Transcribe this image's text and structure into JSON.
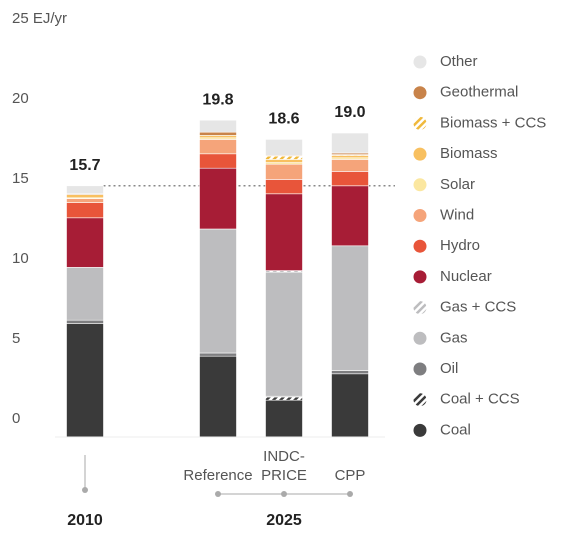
{
  "chart_data": {
    "type": "stacked_bar",
    "categories": [
      null,
      "Reference",
      "INDC-PRICE",
      "CPP"
    ],
    "group_labels": [
      "2010",
      "2025"
    ],
    "totals": [
      15.7,
      19.8,
      18.6,
      19.0
    ],
    "total_labels": [
      "15.7",
      "19.8",
      "18.6",
      "19.0"
    ],
    "ylim": [
      0,
      25
    ],
    "yticks": [
      0,
      5,
      10,
      15,
      20,
      {
        "value": 25,
        "label": "25 EJ/yr"
      }
    ],
    "grid": false,
    "legend": "right",
    "series": [
      {
        "name": "Coal",
        "color": "#3a3a3a",
        "values": [
          7.1,
          5.05,
          2.3,
          3.95
        ]
      },
      {
        "name": "Coal + CCS",
        "color": "#3a3a3a",
        "hatched": true,
        "values": [
          0,
          0,
          0.2,
          0
        ]
      },
      {
        "name": "Oil",
        "color": "#7e7e80",
        "values": [
          0.2,
          0.2,
          0.05,
          0.2
        ]
      },
      {
        "name": "Gas",
        "color": "#bdbdbf",
        "values": [
          3.3,
          7.75,
          7.75,
          7.8
        ]
      },
      {
        "name": "Gas + CCS",
        "color": "#bdbdbf",
        "hatched": true,
        "values": [
          0,
          0,
          0.1,
          0
        ]
      },
      {
        "name": "Nuclear",
        "color": "#a71d36",
        "values": [
          3.1,
          3.8,
          4.8,
          3.75
        ]
      },
      {
        "name": "Hydro",
        "color": "#e8553a",
        "values": [
          0.95,
          0.9,
          0.9,
          0.9
        ]
      },
      {
        "name": "Wind",
        "color": "#f5a47a",
        "values": [
          0.25,
          0.9,
          0.95,
          0.75
        ]
      },
      {
        "name": "Solar",
        "color": "#fbe7a0",
        "values": [
          0.05,
          0.1,
          0.1,
          0.1
        ]
      },
      {
        "name": "Biomass",
        "color": "#f8c060",
        "values": [
          0.2,
          0.15,
          0.2,
          0.15
        ]
      },
      {
        "name": "Biomass + CCS",
        "color": "#f0b93c",
        "hatched": true,
        "values": [
          0,
          0,
          0.2,
          0.05
        ]
      },
      {
        "name": "Geothermal",
        "color": "#c8834a",
        "values": [
          0.05,
          0.2,
          0.05,
          0.1
        ]
      },
      {
        "name": "Other",
        "color": "#e6e6e6",
        "values": [
          0.5,
          0.75,
          1.0,
          1.25
        ]
      }
    ]
  }
}
